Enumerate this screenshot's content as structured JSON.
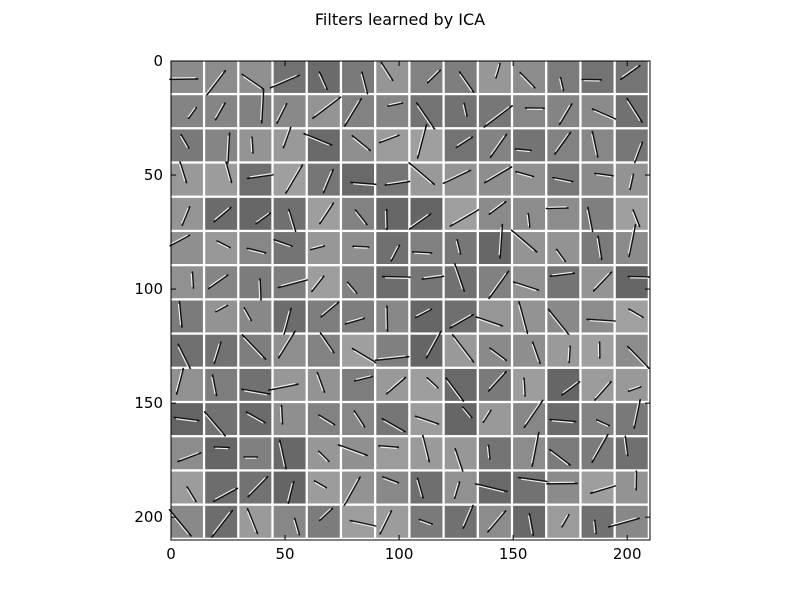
{
  "chart_data": {
    "type": "heatmap",
    "title": "Filters learned by ICA",
    "xlabel": "",
    "ylabel": "",
    "xlim": [
      0,
      210
    ],
    "ylim": [
      210,
      0
    ],
    "y_inverted": true,
    "x_ticks": [
      0,
      50,
      100,
      150,
      200
    ],
    "y_ticks": [
      0,
      50,
      100,
      150,
      200
    ],
    "grid": false,
    "colormap": "gray",
    "tiles": {
      "rows": 14,
      "cols": 14,
      "patch_size": 14,
      "separator": 1
    }
  }
}
